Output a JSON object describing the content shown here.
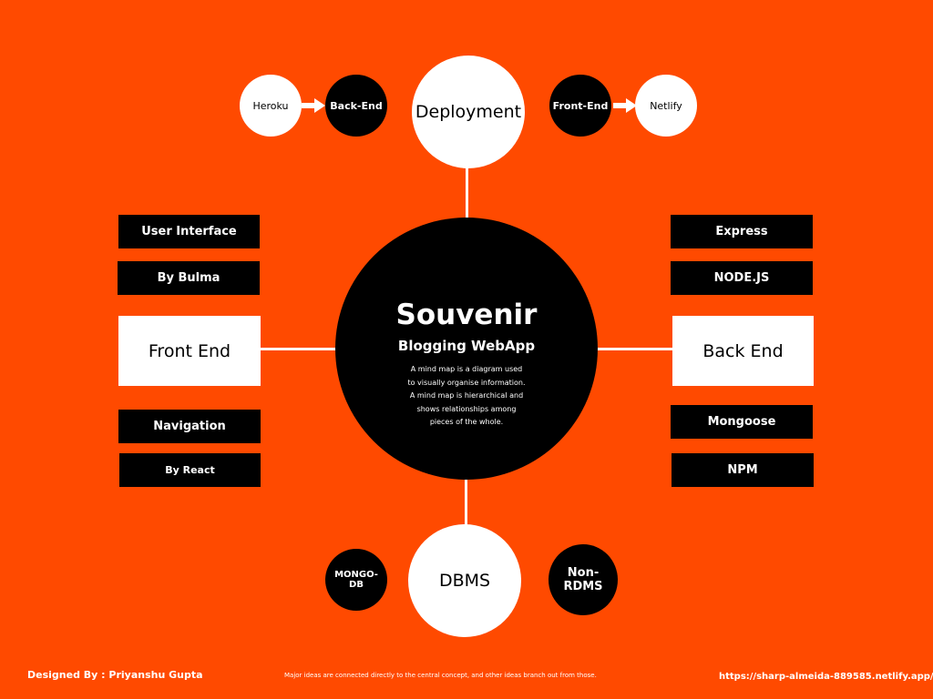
{
  "central": {
    "title": "Souvenir",
    "subtitle": "Blogging WebApp",
    "description_lines": [
      "A mind map is a diagram used",
      "to visually organise information.",
      "A mind map is hierarchical and",
      "shows relationships among",
      "pieces of the whole."
    ]
  },
  "deployment": {
    "label": "Deployment",
    "heroku": "Heroku",
    "back_end": "Back-End",
    "front_end": "Front-End",
    "netlify": "Netlify"
  },
  "front_end": {
    "label": "Front End",
    "user_interface": "User Interface",
    "by_bulma": "By Bulma",
    "navigation": "Navigation",
    "by_react": "By React"
  },
  "back_end": {
    "label": "Back End",
    "express": "Express",
    "nodejs": "NODE.JS",
    "mongoose": "Mongoose",
    "npm": "NPM"
  },
  "dbms": {
    "label": "DBMS",
    "mongodb_line1": "MONGO-",
    "mongodb_line2": "DB",
    "non_rdms": "Non-RDMS"
  },
  "footer": {
    "designer": "Designed By : Priyanshu Gupta",
    "note": "Major ideas are connected directly to the central concept, and other ideas branch out from those.",
    "url": "https://sharp-almeida-889585.netlify.app/"
  },
  "colors": {
    "background": "#ff4a00",
    "dark": "#000000",
    "light": "#ffffff"
  }
}
